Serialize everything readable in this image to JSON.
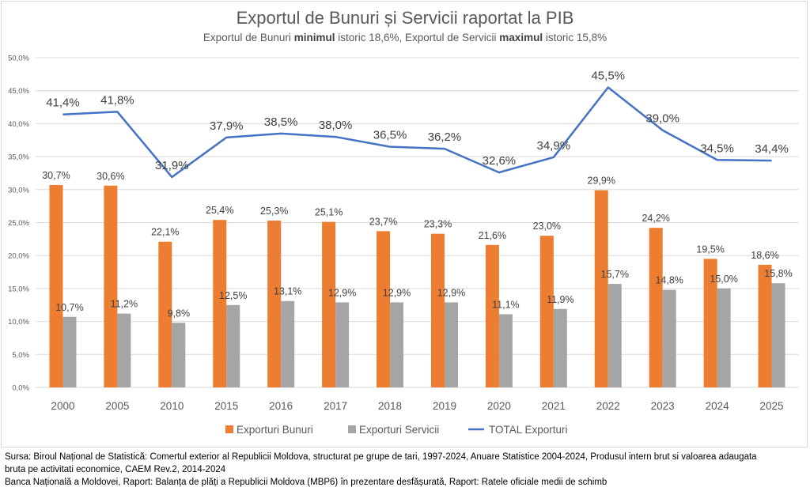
{
  "chart_data": {
    "type": "bar",
    "title": "Exportul de Bunuri și Servicii raportat la PIB",
    "subtitle": {
      "p1": "Exportul de Bunuri ",
      "b1": "minimul",
      "p2": " istoric 18,6%, Exportul de Servicii ",
      "b2": "maximul",
      "p3": " istoric 15,8%"
    },
    "categories": [
      "2000",
      "2005",
      "2010",
      "2015",
      "2016",
      "2017",
      "2018",
      "2019",
      "2020",
      "2021",
      "2022",
      "2023",
      "2024",
      "2025"
    ],
    "series": [
      {
        "name": "Exporturi Bunuri",
        "type": "bar",
        "color": "#ed7d31",
        "values": [
          30.7,
          30.6,
          22.1,
          25.4,
          25.3,
          25.1,
          23.7,
          23.3,
          21.6,
          23.0,
          29.9,
          24.2,
          19.5,
          18.6
        ]
      },
      {
        "name": "Exporturi Servicii",
        "type": "bar",
        "color": "#a5a5a5",
        "values": [
          10.7,
          11.2,
          9.8,
          12.5,
          13.1,
          12.9,
          12.9,
          12.9,
          11.1,
          11.9,
          15.7,
          14.8,
          15.0,
          15.8
        ]
      },
      {
        "name": "TOTAL Exporturi",
        "type": "line",
        "color": "#4472c4",
        "values": [
          41.4,
          41.8,
          31.9,
          37.9,
          38.5,
          38.0,
          36.5,
          36.2,
          32.6,
          34.9,
          45.5,
          39.0,
          34.5,
          34.4
        ]
      }
    ],
    "yticks": [
      "0,0%",
      "5,0%",
      "10,0%",
      "15,0%",
      "20,0%",
      "25,0%",
      "30,0%",
      "35,0%",
      "40,0%",
      "45,0%",
      "50,0%"
    ],
    "ylim": [
      0,
      50
    ],
    "grid": true,
    "legend": "bottom"
  },
  "source": {
    "line1": "Sursa: Biroul Național de Statistică: Comertul exterior al Republicii Moldova, structurat pe grupe de tari, 1997-2024, Anuare Statistice 2004-2024, Produsul intern brut si valoarea adaugata",
    "line2": "bruta pe activitati economice, CAEM Rev.2, 2014-2024",
    "line3": "Banca Națională a Moldovei, Raport: Balanța de plăți a Republicii Moldova (MBP6) în prezentare desfășurată, Raport: Ratele oficiale medii de schimb"
  }
}
